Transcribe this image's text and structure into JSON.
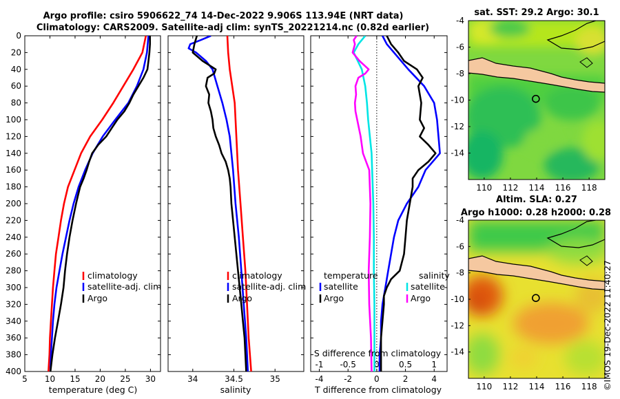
{
  "header": {
    "line1": "Argo profile: csiro 5906622_74 14-Dec-2022 9.906S 113.94E (NRT data)",
    "line2": "Climatology: CARS2009. Satellite-adj clim: synTS_20221214.nc (0.82d earlier)"
  },
  "colors": {
    "climatology": "#ff0000",
    "satellite": "#0000ff",
    "argo": "#000000",
    "s_satellite": "#00e5e5",
    "s_argo": "#ff00ff",
    "land": "#f5c8a0"
  },
  "credit": "©IMOS 19-Dec-2022 11:40:27",
  "chart_data": [
    {
      "type": "line",
      "name": "temperature-profile",
      "xlabel": "temperature (deg C)",
      "xlim": [
        5,
        32
      ],
      "ylim": [
        400,
        0
      ],
      "xticks": [
        5,
        10,
        15,
        20,
        25,
        30
      ],
      "yticks": [
        0,
        20,
        40,
        60,
        80,
        100,
        120,
        140,
        160,
        180,
        200,
        220,
        240,
        260,
        280,
        300,
        320,
        340,
        360,
        380,
        400
      ],
      "legend": [
        "climatology",
        "satellite-adj. clim",
        "Argo"
      ],
      "series": [
        {
          "name": "climatology",
          "color": "#ff0000",
          "depth": [
            0,
            20,
            40,
            60,
            80,
            100,
            120,
            140,
            160,
            180,
            200,
            220,
            240,
            260,
            280,
            300,
            320,
            340,
            360,
            380,
            400
          ],
          "values": [
            29.1,
            28.4,
            26.6,
            24.6,
            22.6,
            20.4,
            18.0,
            16.2,
            14.9,
            13.6,
            12.8,
            12.2,
            11.7,
            11.2,
            10.9,
            10.6,
            10.4,
            10.2,
            10.0,
            9.9,
            9.7
          ]
        },
        {
          "name": "satellite-adj. clim",
          "color": "#0000ff",
          "depth": [
            0,
            20,
            40,
            60,
            80,
            100,
            120,
            140,
            160,
            180,
            200,
            220,
            240,
            260,
            280,
            300,
            320,
            340,
            360,
            380,
            400
          ],
          "values": [
            29.6,
            29.3,
            28.6,
            27.3,
            25.6,
            23.0,
            20.5,
            18.5,
            17.0,
            15.7,
            14.7,
            13.9,
            13.2,
            12.5,
            11.9,
            11.3,
            10.9,
            10.6,
            10.4,
            10.2,
            10.1
          ]
        },
        {
          "name": "Argo",
          "color": "#000000",
          "depth": [
            0,
            10,
            20,
            30,
            40,
            50,
            60,
            70,
            80,
            90,
            100,
            110,
            120,
            130,
            140,
            150,
            160,
            170,
            180,
            190,
            200,
            220,
            240,
            260,
            280,
            300,
            320,
            340,
            360,
            380,
            400
          ],
          "values": [
            29.9,
            29.9,
            29.8,
            29.6,
            29.4,
            28.6,
            27.6,
            26.6,
            25.8,
            24.8,
            23.4,
            22.3,
            21.2,
            19.6,
            18.4,
            17.8,
            17.3,
            16.7,
            16.0,
            15.6,
            15.2,
            14.5,
            13.9,
            13.4,
            13.0,
            12.7,
            12.2,
            11.6,
            11.0,
            10.5,
            10.1
          ]
        }
      ]
    },
    {
      "type": "line",
      "name": "salinity-profile",
      "xlabel": "salinity",
      "xlim": [
        33.7,
        35.35
      ],
      "ylim": [
        400,
        0
      ],
      "xticks": [
        34,
        34.5,
        35
      ],
      "legend": [
        "climatology",
        "satellite-adj. clim",
        "Argo"
      ],
      "series": [
        {
          "name": "climatology",
          "color": "#ff0000",
          "depth": [
            0,
            20,
            40,
            60,
            80,
            100,
            120,
            140,
            160,
            200,
            240,
            280,
            320,
            360,
            400
          ],
          "values": [
            34.42,
            34.43,
            34.45,
            34.48,
            34.51,
            34.52,
            34.53,
            34.54,
            34.55,
            34.58,
            34.61,
            34.64,
            34.66,
            34.68,
            34.71
          ]
        },
        {
          "name": "satellite-adj. clim",
          "color": "#0000ff",
          "depth": [
            0,
            5,
            10,
            15,
            20,
            30,
            40,
            60,
            80,
            100,
            120,
            140,
            160,
            200,
            240,
            280,
            320,
            360,
            400
          ],
          "values": [
            34.22,
            34.1,
            33.97,
            33.95,
            34.04,
            34.16,
            34.24,
            34.3,
            34.36,
            34.41,
            34.45,
            34.47,
            34.49,
            34.52,
            34.56,
            34.59,
            34.62,
            34.65,
            34.67
          ]
        },
        {
          "name": "Argo",
          "color": "#000000",
          "depth": [
            0,
            10,
            20,
            30,
            40,
            45,
            50,
            60,
            70,
            80,
            90,
            100,
            110,
            120,
            130,
            140,
            150,
            160,
            170,
            180,
            200,
            220,
            240,
            260,
            280,
            300,
            320,
            340,
            360,
            380,
            400
          ],
          "values": [
            34.05,
            34.02,
            34.0,
            34.12,
            34.28,
            34.26,
            34.18,
            34.16,
            34.2,
            34.19,
            34.22,
            34.24,
            34.25,
            34.28,
            34.32,
            34.35,
            34.4,
            34.43,
            34.45,
            34.46,
            34.47,
            34.49,
            34.51,
            34.53,
            34.55,
            34.57,
            34.59,
            34.61,
            34.63,
            34.64,
            34.65
          ]
        }
      ]
    },
    {
      "type": "line",
      "name": "difference-profile",
      "xlabel": "T difference from climatology",
      "x2label": "S difference from climatology",
      "xlim": [
        -4.6,
        4.9
      ],
      "ylim": [
        400,
        0
      ],
      "xticks": [
        -4,
        -2,
        0,
        2,
        4
      ],
      "x2ticks": [
        -1,
        -0.5,
        0,
        0.5,
        1
      ],
      "x2lim": [
        -1.15,
        1.225
      ],
      "legend": [
        "temperature",
        "satellite",
        "Argo",
        "salinity",
        "satellite",
        "Argo"
      ],
      "series": [
        {
          "name": "T satellite",
          "color": "#0000ff",
          "axis": "T",
          "depth": [
            0,
            10,
            20,
            40,
            60,
            80,
            100,
            120,
            140,
            160,
            180,
            200,
            220,
            240,
            260,
            280,
            300,
            320,
            340,
            360,
            380,
            400
          ],
          "values": [
            0.4,
            0.7,
            1.2,
            2.2,
            3.3,
            4.0,
            4.2,
            4.3,
            4.4,
            3.4,
            2.9,
            2.1,
            1.5,
            1.2,
            1.0,
            0.8,
            0.6,
            0.4,
            0.3,
            0.3,
            0.2,
            0.2
          ]
        },
        {
          "name": "T Argo",
          "color": "#000000",
          "axis": "T",
          "depth": [
            0,
            10,
            20,
            30,
            40,
            50,
            60,
            80,
            100,
            110,
            120,
            130,
            140,
            150,
            160,
            170,
            180,
            200,
            220,
            240,
            260,
            280,
            290,
            300,
            310,
            320,
            340,
            360,
            380,
            400
          ],
          "values": [
            0.7,
            1.0,
            1.5,
            1.9,
            2.8,
            3.2,
            2.9,
            3.1,
            3.0,
            3.3,
            3.0,
            3.6,
            4.1,
            3.6,
            2.9,
            2.5,
            2.5,
            2.3,
            2.1,
            2.0,
            1.9,
            1.6,
            1.0,
            0.7,
            0.5,
            0.5,
            0.4,
            0.3,
            0.3,
            0.3
          ]
        },
        {
          "name": "S satellite",
          "color": "#00e5e5",
          "axis": "S",
          "depth": [
            0,
            10,
            20,
            40,
            60,
            80,
            100,
            120,
            140,
            160,
            200,
            240,
            280,
            320,
            360,
            400
          ],
          "values": [
            -0.2,
            -0.32,
            -0.4,
            -0.26,
            -0.2,
            -0.17,
            -0.15,
            -0.12,
            -0.09,
            -0.08,
            -0.06,
            -0.05,
            -0.05,
            -0.04,
            -0.04,
            -0.04
          ]
        },
        {
          "name": "S Argo",
          "color": "#ff00ff",
          "axis": "S",
          "depth": [
            0,
            5,
            10,
            20,
            30,
            40,
            45,
            50,
            60,
            70,
            80,
            90,
            100,
            120,
            140,
            160,
            200,
            240,
            280,
            320,
            360,
            400
          ],
          "values": [
            -0.35,
            -0.4,
            -0.38,
            -0.42,
            -0.3,
            -0.14,
            -0.2,
            -0.32,
            -0.37,
            -0.36,
            -0.38,
            -0.37,
            -0.34,
            -0.28,
            -0.24,
            -0.13,
            -0.11,
            -0.12,
            -0.14,
            -0.13,
            -0.1,
            -0.09
          ]
        }
      ]
    },
    {
      "type": "heatmap",
      "name": "sst-map",
      "title": "sat. SST: 29.2 Argo: 30.1",
      "xlim": [
        108.8,
        119.2
      ],
      "ylim": [
        -16,
        -4
      ],
      "xticks": [
        110,
        112,
        114,
        116,
        118
      ],
      "yticks": [
        -4,
        -6,
        -8,
        -10,
        -12,
        -14
      ],
      "marker": {
        "lon": 113.94,
        "lat": -9.906
      }
    },
    {
      "type": "heatmap",
      "name": "sla-map",
      "title": "Altim. SLA: 0.27",
      "subtitle": "Argo h1000: 0.28 h2000: 0.28",
      "xlim": [
        108.8,
        119.2
      ],
      "ylim": [
        -16,
        -4
      ],
      "xticks": [
        110,
        112,
        114,
        116,
        118
      ],
      "yticks": [
        -4,
        -6,
        -8,
        -10,
        -12,
        -14
      ],
      "marker": {
        "lon": 113.94,
        "lat": -9.906
      }
    }
  ]
}
